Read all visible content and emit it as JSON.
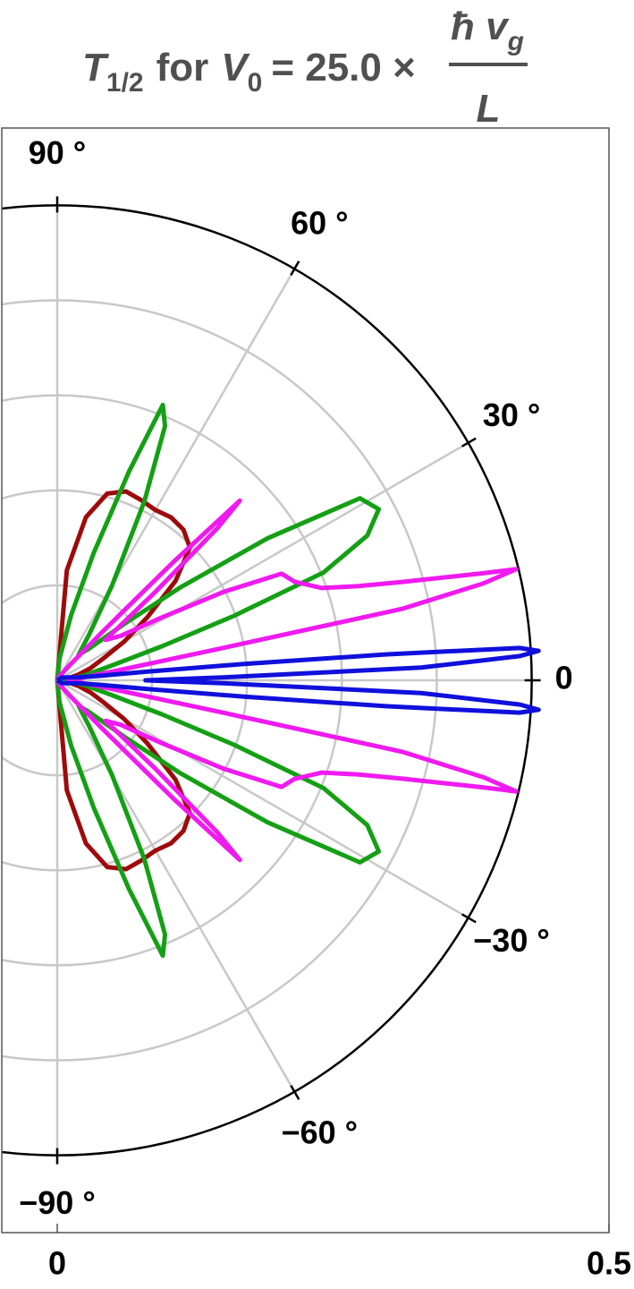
{
  "chart_data": {
    "type": "polar",
    "title_parts": [
      "T",
      "1/2",
      "for",
      "V",
      "0",
      "= 25.0 ×",
      "ħ v",
      "g",
      "L"
    ],
    "rlim": [
      0,
      0.5
    ],
    "rticks": [
      0,
      0.5
    ],
    "rgrid": [
      0.086,
      0.172,
      0.258,
      0.344
    ],
    "rmax": 0.43,
    "thetaticks": [
      {
        "value": 90,
        "label": "90 °"
      },
      {
        "value": 60,
        "label": "60 °"
      },
      {
        "value": 30,
        "label": "30 °"
      },
      0,
      {
        "value": -30,
        "label": "−30 °"
      },
      {
        "value": -60,
        "label": "−60 °"
      },
      {
        "value": -90,
        "label": "−90 °"
      }
    ],
    "grid": true,
    "series": [
      {
        "color": "#9e0a0a",
        "theta": [
          -90,
          -85,
          -80,
          -75,
          -70,
          -65,
          -60,
          -55,
          -50,
          -45,
          -40,
          -35,
          -30,
          -25,
          -20,
          -15,
          -10,
          -5,
          0,
          5,
          10,
          15,
          20,
          25,
          30,
          35,
          40,
          45,
          50,
          55,
          60,
          65,
          70,
          75,
          80,
          85,
          90
        ],
        "r": [
          0,
          0.1,
          0.15,
          0.175,
          0.182,
          0.18,
          0.178,
          0.18,
          0.178,
          0.17,
          0.14,
          0.1,
          0.07,
          0.045,
          0.032,
          0.02,
          0.01,
          0.003,
          0,
          0.003,
          0.01,
          0.02,
          0.032,
          0.045,
          0.07,
          0.1,
          0.14,
          0.17,
          0.178,
          0.18,
          0.178,
          0.18,
          0.182,
          0.175,
          0.15,
          0.1,
          0
        ]
      },
      {
        "color": "#14a014",
        "theta": [
          -90,
          -84,
          -78,
          -74,
          -71,
          -69,
          -67,
          -64,
          -60,
          -55,
          -50,
          -45,
          -40,
          -37,
          -34,
          -31,
          -28,
          -25,
          -22,
          -20,
          -18,
          -15,
          -10,
          -5,
          0,
          5,
          10,
          15,
          18,
          20,
          22,
          25,
          28,
          31,
          34,
          37,
          40,
          45,
          50,
          55,
          60,
          64,
          67,
          69,
          71,
          74,
          78,
          84,
          90
        ],
        "r": [
          0,
          0.02,
          0.06,
          0.12,
          0.2,
          0.267,
          0.25,
          0.18,
          0.1,
          0.05,
          0.03,
          0.04,
          0.08,
          0.14,
          0.23,
          0.32,
          0.33,
          0.31,
          0.26,
          0.17,
          0.1,
          0.05,
          0.025,
          0.01,
          0,
          0.01,
          0.025,
          0.05,
          0.1,
          0.17,
          0.26,
          0.31,
          0.33,
          0.32,
          0.23,
          0.14,
          0.08,
          0.04,
          0.03,
          0.05,
          0.1,
          0.18,
          0.25,
          0.267,
          0.2,
          0.12,
          0.06,
          0.02,
          0
        ]
      },
      {
        "color": "#f01af0",
        "theta": [
          -90,
          -60,
          -50,
          -47,
          -45.5,
          -44.5,
          -43.5,
          -42,
          -40,
          -35,
          -31,
          -28,
          -25.4,
          -22.5,
          -19.2,
          -17.4,
          -15.9,
          -14.1,
          -13.6,
          -12.8,
          -11.7,
          -11,
          -9,
          -5,
          0,
          5,
          9,
          11,
          11.7,
          12.8,
          13.6,
          14.1,
          15.9,
          17.4,
          19.2,
          22.5,
          25.4,
          28,
          31,
          35,
          40,
          42,
          43.5,
          44.5,
          45.5,
          47,
          50,
          60,
          90
        ],
        "r": [
          0,
          0.005,
          0.02,
          0.06,
          0.15,
          0.232,
          0.2,
          0.12,
          0.057,
          0.07,
          0.11,
          0.17,
          0.225,
          0.233,
          0.254,
          0.285,
          0.325,
          0.398,
          0.428,
          0.396,
          0.32,
          0.15,
          0.05,
          0.02,
          0.01,
          0.02,
          0.05,
          0.15,
          0.32,
          0.396,
          0.428,
          0.398,
          0.325,
          0.285,
          0.254,
          0.233,
          0.225,
          0.17,
          0.11,
          0.07,
          0.057,
          0.12,
          0.2,
          0.232,
          0.15,
          0.06,
          0.02,
          0.005,
          0
        ]
      },
      {
        "color": "#1010dc",
        "theta": [
          -90,
          -30,
          -15,
          -8,
          -6,
          -5.5,
          -5,
          -4.5,
          -4,
          -3.5,
          -3,
          -2,
          -1,
          0,
          1,
          2,
          3,
          3.5,
          4,
          4.5,
          5,
          5.5,
          6,
          8,
          15,
          30,
          90
        ],
        "r": [
          0,
          0.005,
          0.01,
          0.02,
          0.04,
          0.08,
          0.17,
          0.3,
          0.42,
          0.437,
          0.42,
          0.33,
          0.15,
          0.08,
          0.15,
          0.33,
          0.42,
          0.437,
          0.42,
          0.3,
          0.17,
          0.08,
          0.04,
          0.02,
          0.01,
          0.005,
          0
        ]
      }
    ]
  }
}
